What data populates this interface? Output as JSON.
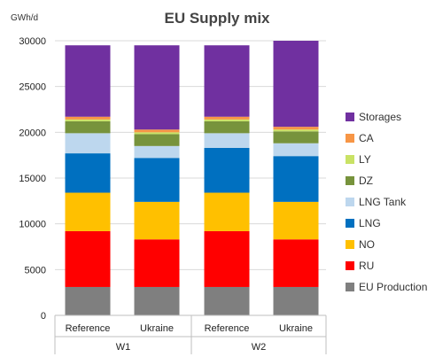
{
  "chart_data": {
    "type": "bar",
    "stacked": true,
    "title": "EU Supply mix",
    "ylabel": "GWh/d",
    "xlabel": "",
    "ylim": [
      0,
      30000
    ],
    "yticks": [
      0,
      5000,
      10000,
      15000,
      20000,
      25000,
      30000
    ],
    "ytick_labels": [
      "0",
      "5000",
      "10000",
      "15000",
      "20000",
      "25000",
      "30000"
    ],
    "grid": true,
    "legend_position": "right",
    "groups": [
      {
        "label": "W1",
        "categories": [
          "Reference",
          "Ukraine"
        ]
      },
      {
        "label": "W2",
        "categories": [
          "Reference",
          "Ukraine"
        ]
      }
    ],
    "categories": [
      "Reference",
      "Ukraine",
      "Reference",
      "Ukraine"
    ],
    "series": [
      {
        "name": "EU Production",
        "color": "#7f7f7f",
        "values": [
          3100,
          3100,
          3100,
          3100
        ]
      },
      {
        "name": "RU",
        "color": "#ff0000",
        "values": [
          6100,
          5200,
          6100,
          5200
        ]
      },
      {
        "name": "NO",
        "color": "#ffc000",
        "values": [
          4200,
          4100,
          4200,
          4100
        ]
      },
      {
        "name": "LNG",
        "color": "#0070c0",
        "values": [
          4300,
          4800,
          4900,
          5000
        ]
      },
      {
        "name": "LNG Tank",
        "color": "#bdd7ee",
        "values": [
          2200,
          1300,
          1600,
          1400
        ]
      },
      {
        "name": "DZ",
        "color": "#77933c",
        "values": [
          1300,
          1300,
          1300,
          1300
        ]
      },
      {
        "name": "LY",
        "color": "#c9e265",
        "values": [
          200,
          200,
          200,
          200
        ]
      },
      {
        "name": "CA",
        "color": "#f79646",
        "values": [
          300,
          300,
          300,
          300
        ]
      },
      {
        "name": "Storages",
        "color": "#7030a0",
        "values": [
          7800,
          9200,
          7800,
          9400
        ]
      }
    ]
  }
}
